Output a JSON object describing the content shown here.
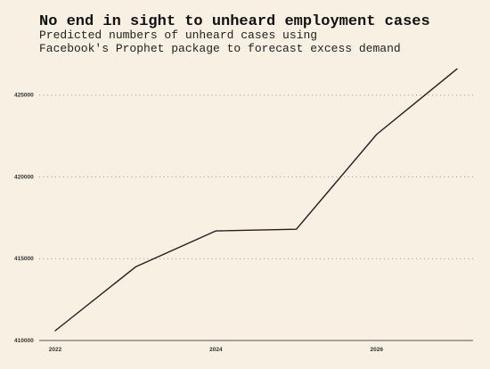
{
  "chart_data": {
    "type": "line",
    "title": "No end in sight to unheard employment cases",
    "subtitle_lines": [
      "Predicted numbers of unheard cases using",
      "Facebook's Prophet package to forecast excess demand"
    ],
    "xlabel": "",
    "ylabel": "",
    "x": [
      2022,
      2023,
      2024,
      2025,
      2026,
      2027
    ],
    "series": [
      {
        "values": [
          410600,
          414500,
          416700,
          416800,
          422600,
          426600
        ]
      }
    ],
    "xlim": [
      2021.8,
      2027.2
    ],
    "ylim": [
      410000,
      427000
    ],
    "x_ticks": [
      2022,
      2024,
      2026
    ],
    "x_tick_labels": [
      "2022",
      "2024",
      "2026"
    ],
    "y_ticks": [
      410000,
      415000,
      420000,
      425000
    ],
    "y_tick_labels": [
      "410000",
      "415000",
      "420000",
      "425000"
    ],
    "grid": "horizontal dotted",
    "legend": "none",
    "colors": {
      "background": "#f7f0e3",
      "line": "#1f1f1f",
      "grid": "#999999",
      "axis": "#555555"
    }
  }
}
